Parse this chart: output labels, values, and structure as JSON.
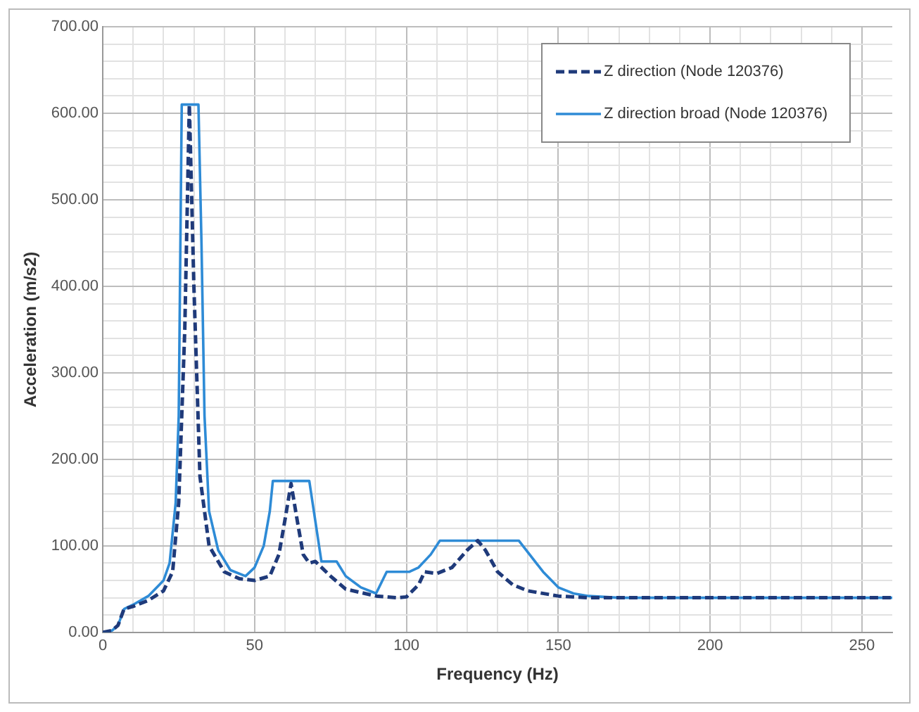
{
  "chart_data": {
    "type": "line",
    "xlabel": "Frequency (Hz)",
    "ylabel": "Acceleration (m/s2)",
    "xlim": [
      0,
      260
    ],
    "ylim": [
      0,
      700
    ],
    "xticks": [
      0,
      {
        "value": 10,
        "label": null
      },
      {
        "value": 20,
        "label": null
      },
      {
        "value": 30,
        "label": null
      },
      {
        "value": 40,
        "label": null
      },
      50,
      {
        "value": 60,
        "label": null
      },
      {
        "value": 70,
        "label": null
      },
      {
        "value": 80,
        "label": null
      },
      {
        "value": 90,
        "label": null
      },
      100,
      {
        "value": 110,
        "label": null
      },
      {
        "value": 120,
        "label": null
      },
      {
        "value": 130,
        "label": null
      },
      {
        "value": 140,
        "label": null
      },
      150,
      {
        "value": 160,
        "label": null
      },
      {
        "value": 170,
        "label": null
      },
      {
        "value": 180,
        "label": null
      },
      {
        "value": 190,
        "label": null
      },
      200,
      {
        "value": 210,
        "label": null
      },
      {
        "value": 220,
        "label": null
      },
      {
        "value": 230,
        "label": null
      },
      {
        "value": 240,
        "label": null
      },
      250
    ],
    "yticks": [
      {
        "value": 0,
        "label": "0.00"
      },
      {
        "value": 20,
        "label": null
      },
      {
        "value": 40,
        "label": null
      },
      {
        "value": 60,
        "label": null
      },
      {
        "value": 80,
        "label": null
      },
      {
        "value": 100,
        "label": "100.00"
      },
      {
        "value": 120,
        "label": null
      },
      {
        "value": 140,
        "label": null
      },
      {
        "value": 160,
        "label": null
      },
      {
        "value": 180,
        "label": null
      },
      {
        "value": 200,
        "label": "200.00"
      },
      {
        "value": 220,
        "label": null
      },
      {
        "value": 240,
        "label": null
      },
      {
        "value": 260,
        "label": null
      },
      {
        "value": 280,
        "label": null
      },
      {
        "value": 300,
        "label": "300.00"
      },
      {
        "value": 320,
        "label": null
      },
      {
        "value": 340,
        "label": null
      },
      {
        "value": 360,
        "label": null
      },
      {
        "value": 380,
        "label": null
      },
      {
        "value": 400,
        "label": "400.00"
      },
      {
        "value": 420,
        "label": null
      },
      {
        "value": 440,
        "label": null
      },
      {
        "value": 460,
        "label": null
      },
      {
        "value": 480,
        "label": null
      },
      {
        "value": 500,
        "label": "500.00"
      },
      {
        "value": 520,
        "label": null
      },
      {
        "value": 540,
        "label": null
      },
      {
        "value": 560,
        "label": null
      },
      {
        "value": 580,
        "label": null
      },
      {
        "value": 600,
        "label": "600.00"
      },
      {
        "value": 620,
        "label": null
      },
      {
        "value": 640,
        "label": null
      },
      {
        "value": 660,
        "label": null
      },
      {
        "value": 680,
        "label": null
      },
      {
        "value": 700,
        "label": "700.00"
      }
    ],
    "grid": true,
    "legend": "top right",
    "marker": "none",
    "series": [
      {
        "name": "Z direction (Node 120376)",
        "color": "#1f3a7a",
        "line_style": "dashed",
        "x": [
          0,
          3,
          5,
          7,
          10,
          15,
          20,
          23,
          25,
          27,
          28.5,
          30,
          32,
          35,
          40,
          45,
          50,
          55,
          58,
          60,
          62,
          64,
          66,
          68,
          70,
          75,
          80,
          90,
          97,
          100,
          104,
          106,
          110,
          115,
          120,
          123.5,
          126,
          130,
          135,
          140,
          150,
          160,
          260
        ],
        "values": [
          0,
          2,
          8,
          27,
          30,
          37,
          48,
          70,
          150,
          350,
          610,
          400,
          180,
          100,
          70,
          62,
          60,
          65,
          90,
          130,
          172,
          130,
          90,
          80,
          82,
          65,
          50,
          42,
          40,
          41,
          55,
          70,
          68,
          75,
          95,
          106,
          95,
          70,
          55,
          48,
          42,
          40,
          40
        ]
      },
      {
        "name": "Z direction broad (Node 120376)",
        "color": "#2e8bd6",
        "line_style": "solid",
        "x": [
          0,
          3,
          5,
          7,
          10,
          15,
          20,
          22,
          24,
          25,
          26,
          31.5,
          32.5,
          33.5,
          35,
          38,
          42,
          47,
          50,
          53,
          55,
          56,
          68,
          72,
          77,
          80,
          85,
          90,
          93.5,
          101,
          104,
          108,
          111,
          137,
          145,
          150,
          155,
          160,
          170,
          260
        ],
        "values": [
          0,
          2,
          8,
          27,
          32,
          42,
          60,
          80,
          150,
          250,
          610,
          610,
          450,
          250,
          140,
          95,
          72,
          65,
          75,
          100,
          140,
          175,
          175,
          82,
          82,
          65,
          52,
          45,
          70,
          70,
          75,
          90,
          106,
          106,
          70,
          52,
          45,
          42,
          40,
          40
        ]
      }
    ]
  }
}
